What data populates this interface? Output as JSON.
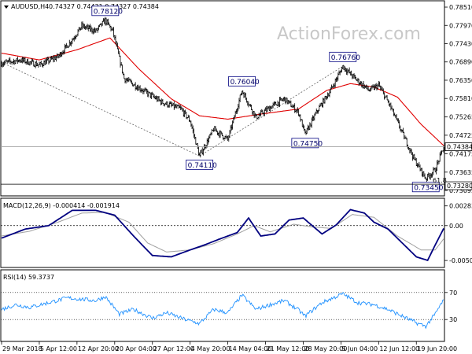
{
  "chart_data": {
    "type": "line",
    "symbol_line": "AUDUSD,H4",
    "ohlc_text": "0.74327 0.74431 0.74327 0.74384",
    "watermark": "ActionForex.com",
    "current_price_label": "0.74384",
    "current_price": 0.74384,
    "fib_label": "61.8",
    "fib_price_label": "0.73280",
    "fib_price": 0.7328,
    "y_ticks": [
      "0.78510",
      "0.77970",
      "0.77430",
      "0.76890",
      "0.76350",
      "0.75810",
      "0.75265",
      "0.74725",
      "0.74175",
      "0.73635",
      "0.73095"
    ],
    "y_tick_values": [
      0.7851,
      0.7797,
      0.7743,
      0.7689,
      0.7635,
      0.7581,
      0.75265,
      0.74725,
      0.74175,
      0.73635,
      0.73095
    ],
    "ylim": [
      0.7298,
      0.7865
    ],
    "x_ticks": [
      "29 Mar 2018",
      "5 Apr 12:00",
      "12 Apr 20:00",
      "20 Apr 04:00",
      "27 Apr 12:00",
      "4 May 20:00",
      "14 May 04:00",
      "21 May 12:00",
      "28 May 20:00",
      "5 Jun 04:00",
      "12 Jun 12:00",
      "19 Jun 20:00"
    ],
    "x_tick_index": [
      0,
      40,
      80,
      120,
      160,
      200,
      240,
      280,
      320,
      360,
      400,
      440
    ],
    "n_bars": 470,
    "price_keypoints": [
      {
        "i": 0,
        "v": 0.7685
      },
      {
        "i": 20,
        "v": 0.7695
      },
      {
        "i": 40,
        "v": 0.768
      },
      {
        "i": 60,
        "v": 0.7705
      },
      {
        "i": 75,
        "v": 0.7755
      },
      {
        "i": 85,
        "v": 0.7795
      },
      {
        "i": 100,
        "v": 0.778
      },
      {
        "i": 110,
        "v": 0.7812
      },
      {
        "i": 118,
        "v": 0.778
      },
      {
        "i": 130,
        "v": 0.764
      },
      {
        "i": 150,
        "v": 0.7605
      },
      {
        "i": 170,
        "v": 0.757
      },
      {
        "i": 190,
        "v": 0.755
      },
      {
        "i": 200,
        "v": 0.7515
      },
      {
        "i": 210,
        "v": 0.7411
      },
      {
        "i": 225,
        "v": 0.749
      },
      {
        "i": 240,
        "v": 0.746
      },
      {
        "i": 255,
        "v": 0.7604
      },
      {
        "i": 270,
        "v": 0.7525
      },
      {
        "i": 285,
        "v": 0.7555
      },
      {
        "i": 300,
        "v": 0.758
      },
      {
        "i": 315,
        "v": 0.754
      },
      {
        "i": 322,
        "v": 0.7475
      },
      {
        "i": 335,
        "v": 0.7545
      },
      {
        "i": 350,
        "v": 0.761
      },
      {
        "i": 362,
        "v": 0.7676
      },
      {
        "i": 375,
        "v": 0.764
      },
      {
        "i": 390,
        "v": 0.7605
      },
      {
        "i": 400,
        "v": 0.762
      },
      {
        "i": 412,
        "v": 0.756
      },
      {
        "i": 425,
        "v": 0.748
      },
      {
        "i": 438,
        "v": 0.74
      },
      {
        "i": 450,
        "v": 0.7345
      },
      {
        "i": 460,
        "v": 0.737
      },
      {
        "i": 469,
        "v": 0.74384
      }
    ],
    "ma_keypoints": [
      {
        "i": 0,
        "v": 0.7715
      },
      {
        "i": 40,
        "v": 0.7695
      },
      {
        "i": 80,
        "v": 0.7725
      },
      {
        "i": 115,
        "v": 0.776
      },
      {
        "i": 145,
        "v": 0.767
      },
      {
        "i": 180,
        "v": 0.758
      },
      {
        "i": 210,
        "v": 0.753
      },
      {
        "i": 240,
        "v": 0.752
      },
      {
        "i": 275,
        "v": 0.7535
      },
      {
        "i": 315,
        "v": 0.755
      },
      {
        "i": 345,
        "v": 0.7605
      },
      {
        "i": 370,
        "v": 0.7625
      },
      {
        "i": 395,
        "v": 0.7615
      },
      {
        "i": 420,
        "v": 0.7585
      },
      {
        "i": 445,
        "v": 0.7505
      },
      {
        "i": 469,
        "v": 0.7442
      }
    ],
    "trendlines": [
      {
        "from": {
          "i": 0,
          "v": 0.7688
        },
        "to": {
          "i": 210,
          "v": 0.7411
        }
      },
      {
        "from": {
          "i": 210,
          "v": 0.7411
        },
        "to": {
          "i": 362,
          "v": 0.7676
        }
      }
    ],
    "annotations": [
      {
        "label": "0.78120",
        "i": 110,
        "v": 0.7812,
        "pos": "above"
      },
      {
        "label": "0.74110",
        "i": 210,
        "v": 0.7411,
        "pos": "below"
      },
      {
        "label": "0.76040",
        "i": 255,
        "v": 0.7604,
        "pos": "above"
      },
      {
        "label": "0.74750",
        "i": 322,
        "v": 0.7475,
        "pos": "below"
      },
      {
        "label": "0.76760",
        "i": 362,
        "v": 0.7676,
        "pos": "above"
      },
      {
        "label": "0.73450",
        "i": 450,
        "v": 0.7345,
        "pos": "below"
      }
    ],
    "macd": {
      "label": "MACD(12,26,9) -0.000414 -0.001914",
      "y_ticks": [
        "0.002839",
        "0.00",
        "-0.005021"
      ],
      "y_tick_values": [
        0.002839,
        0.0,
        -0.005021
      ],
      "ylim": [
        -0.0058,
        0.0036
      ],
      "main_keypoints": [
        {
          "i": 0,
          "v": -0.0018
        },
        {
          "i": 25,
          "v": -0.0005
        },
        {
          "i": 50,
          "v": 0.0
        },
        {
          "i": 75,
          "v": 0.0022
        },
        {
          "i": 100,
          "v": 0.0022
        },
        {
          "i": 120,
          "v": 0.0015
        },
        {
          "i": 140,
          "v": -0.0015
        },
        {
          "i": 160,
          "v": -0.0043
        },
        {
          "i": 180,
          "v": -0.0045
        },
        {
          "i": 200,
          "v": -0.0035
        },
        {
          "i": 215,
          "v": -0.0028
        },
        {
          "i": 230,
          "v": -0.002
        },
        {
          "i": 250,
          "v": -0.001
        },
        {
          "i": 262,
          "v": 0.0011
        },
        {
          "i": 275,
          "v": -0.0015
        },
        {
          "i": 290,
          "v": -0.0012
        },
        {
          "i": 305,
          "v": 0.0008
        },
        {
          "i": 320,
          "v": 0.0011
        },
        {
          "i": 340,
          "v": -0.0012
        },
        {
          "i": 355,
          "v": 0.0001
        },
        {
          "i": 370,
          "v": 0.0023
        },
        {
          "i": 385,
          "v": 0.0018
        },
        {
          "i": 395,
          "v": 0.0005
        },
        {
          "i": 410,
          "v": -0.0005
        },
        {
          "i": 425,
          "v": -0.0025
        },
        {
          "i": 440,
          "v": -0.0045
        },
        {
          "i": 452,
          "v": -0.005
        },
        {
          "i": 460,
          "v": -0.0028
        },
        {
          "i": 469,
          "v": -0.000414
        }
      ],
      "signal_keypoints": [
        {
          "i": 0,
          "v": -0.0015
        },
        {
          "i": 30,
          "v": -0.0008
        },
        {
          "i": 60,
          "v": 0.0005
        },
        {
          "i": 85,
          "v": 0.0018
        },
        {
          "i": 110,
          "v": 0.0019
        },
        {
          "i": 135,
          "v": 0.0005
        },
        {
          "i": 155,
          "v": -0.0025
        },
        {
          "i": 175,
          "v": -0.0038
        },
        {
          "i": 200,
          "v": -0.0035
        },
        {
          "i": 225,
          "v": -0.0026
        },
        {
          "i": 250,
          "v": -0.0012
        },
        {
          "i": 268,
          "v": 0.0
        },
        {
          "i": 285,
          "v": -0.0009
        },
        {
          "i": 310,
          "v": 0.0002
        },
        {
          "i": 330,
          "v": -0.0002
        },
        {
          "i": 350,
          "v": -0.0004
        },
        {
          "i": 372,
          "v": 0.0016
        },
        {
          "i": 395,
          "v": 0.0012
        },
        {
          "i": 420,
          "v": -0.0015
        },
        {
          "i": 445,
          "v": -0.0035
        },
        {
          "i": 460,
          "v": -0.0035
        },
        {
          "i": 469,
          "v": -0.001914
        }
      ]
    },
    "rsi": {
      "label": "RSI(14) 59.3737",
      "y_ticks": [
        "70",
        "30"
      ],
      "y_tick_values": [
        70,
        30
      ],
      "ylim": [
        0,
        100
      ],
      "keypoints": [
        {
          "i": 0,
          "v": 45
        },
        {
          "i": 15,
          "v": 52
        },
        {
          "i": 30,
          "v": 48
        },
        {
          "i": 50,
          "v": 55
        },
        {
          "i": 70,
          "v": 62
        },
        {
          "i": 85,
          "v": 60
        },
        {
          "i": 100,
          "v": 58
        },
        {
          "i": 110,
          "v": 64
        },
        {
          "i": 125,
          "v": 38
        },
        {
          "i": 140,
          "v": 45
        },
        {
          "i": 160,
          "v": 32
        },
        {
          "i": 175,
          "v": 40
        },
        {
          "i": 195,
          "v": 30
        },
        {
          "i": 210,
          "v": 24
        },
        {
          "i": 225,
          "v": 45
        },
        {
          "i": 240,
          "v": 40
        },
        {
          "i": 255,
          "v": 66
        },
        {
          "i": 270,
          "v": 45
        },
        {
          "i": 285,
          "v": 52
        },
        {
          "i": 300,
          "v": 58
        },
        {
          "i": 315,
          "v": 44
        },
        {
          "i": 322,
          "v": 35
        },
        {
          "i": 340,
          "v": 55
        },
        {
          "i": 362,
          "v": 68
        },
        {
          "i": 378,
          "v": 55
        },
        {
          "i": 395,
          "v": 52
        },
        {
          "i": 410,
          "v": 45
        },
        {
          "i": 425,
          "v": 35
        },
        {
          "i": 440,
          "v": 25
        },
        {
          "i": 450,
          "v": 20
        },
        {
          "i": 460,
          "v": 38
        },
        {
          "i": 469,
          "v": 59.37
        }
      ]
    },
    "colors": {
      "price": "#000000",
      "ma": "#e00000",
      "tag_border": "#000080",
      "macd_main": "#000080",
      "macd_signal": "#a0a0a0",
      "rsi": "#1e90ff",
      "grid_dotted": "#000000",
      "trendline": "#606060"
    }
  }
}
